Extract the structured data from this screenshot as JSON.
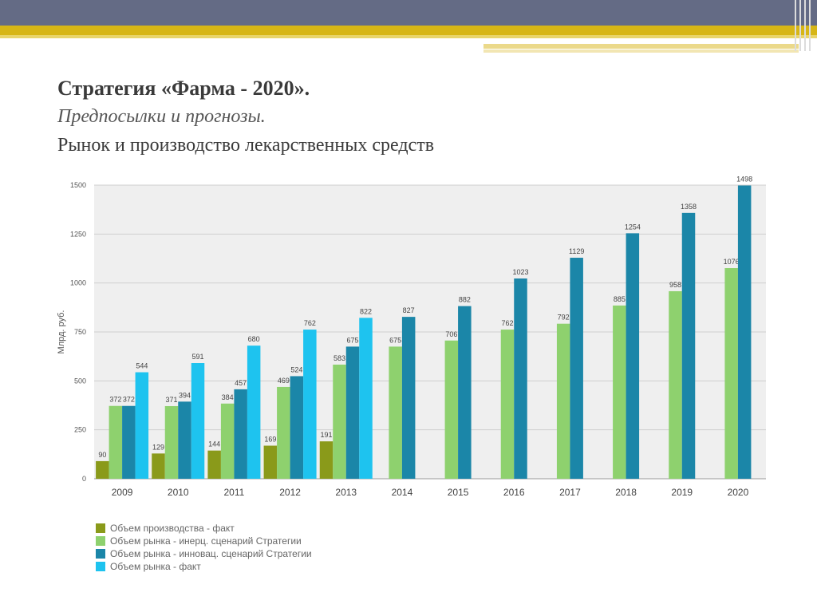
{
  "header": {
    "title": "Стратегия «Фарма - 2020».",
    "subtitle": "Предпосылки и прогнозы.",
    "subtitle2": "Рынок и производство лекарственных средств"
  },
  "colors": {
    "production_fact": "#8a9a1a",
    "market_inertial": "#8ed16e",
    "market_innovative": "#1b86a8",
    "market_fact": "#1ec3ef",
    "plot_bg": "#efefef",
    "grid": "#cfcfcf"
  },
  "chart_data": {
    "type": "bar",
    "ylabel": "Млрд. руб.",
    "ylim": [
      0,
      1500
    ],
    "yticks": [
      0,
      250,
      500,
      750,
      1000,
      1250,
      1500
    ],
    "categories": [
      "2009",
      "2010",
      "2011",
      "2012",
      "2013",
      "2014",
      "2015",
      "2016",
      "2017",
      "2018",
      "2019",
      "2020"
    ],
    "grid": true,
    "legend_position": "bottom-left",
    "series": [
      {
        "name": "Объем производства - факт",
        "color": "#8a9a1a",
        "values": [
          90,
          129,
          144,
          169,
          191,
          null,
          null,
          null,
          null,
          null,
          null,
          null
        ]
      },
      {
        "name": "Объем рынка - инерц. сценарий Стратегии",
        "color": "#8ed16e",
        "values": [
          372,
          371,
          384,
          469,
          583,
          675,
          706,
          762,
          792,
          885,
          958,
          1076
        ]
      },
      {
        "name": "Объем рынка - инновац. сценарий Стратегии",
        "color": "#1b86a8",
        "values": [
          372,
          394,
          457,
          524,
          675,
          827,
          882,
          1023,
          1129,
          1254,
          1358,
          1498
        ]
      },
      {
        "name": "Объем рынка - факт",
        "color": "#1ec3ef",
        "values": [
          544,
          591,
          680,
          762,
          822,
          null,
          null,
          null,
          null,
          null,
          null,
          null
        ]
      }
    ]
  }
}
